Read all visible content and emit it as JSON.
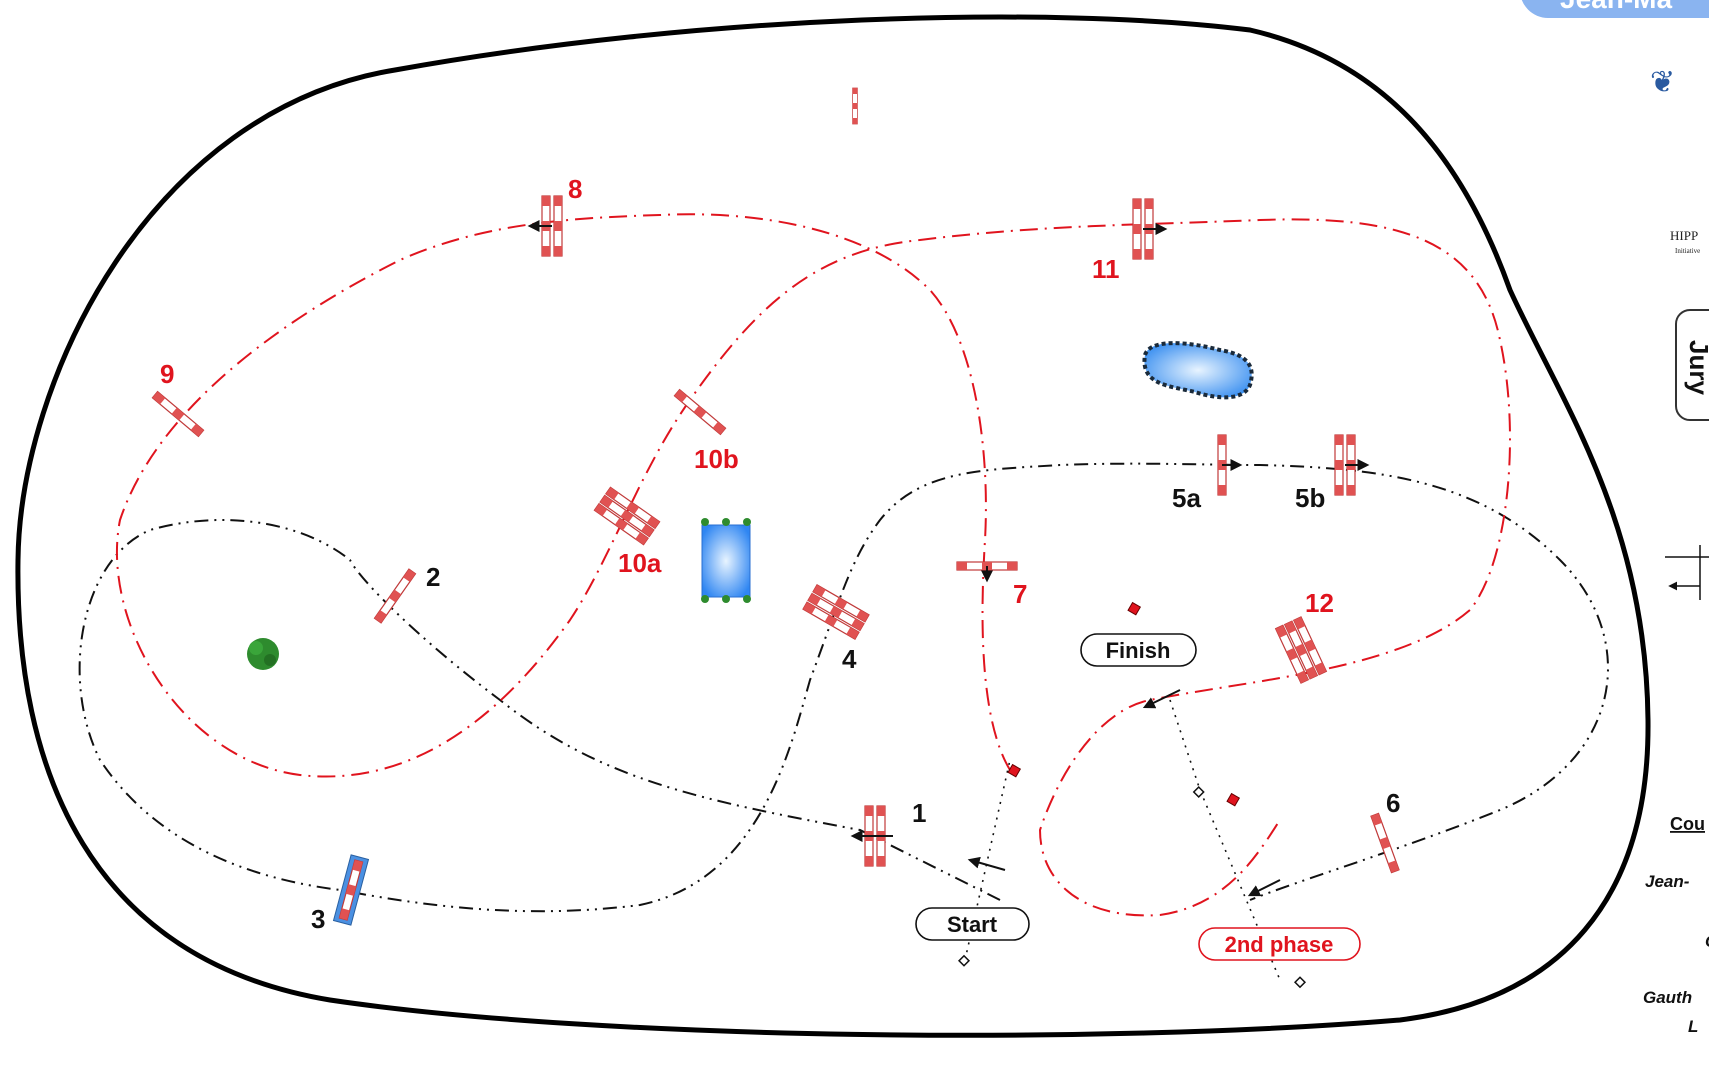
{
  "labels": {
    "start": "Start",
    "finish": "Finish",
    "second_phase": "2nd phase"
  },
  "fences": {
    "f1": "1",
    "f2": "2",
    "f3": "3",
    "f4": "4",
    "f5a": "5a",
    "f5b": "5b",
    "f6": "6",
    "f7": "7",
    "f8": "8",
    "f9": "9",
    "f10a": "10a",
    "f10b": "10b",
    "f11": "11",
    "f12": "12"
  },
  "sidebar": {
    "header_tab": "Jean-Ma",
    "sponsor": "HIPP",
    "sponsor_sub": "Initiative",
    "jury_tab": "Jury",
    "course_label": "Cou",
    "designer1": "Jean-",
    "designer2": "C",
    "designer3": "Gauth",
    "designer4": "L"
  },
  "colors": {
    "arena_outline": "#000000",
    "first_phase_track": "#111111",
    "second_phase_track": "#e0141e",
    "rail_red": "#e05252",
    "water": "#3b8ff0",
    "tree": "#2e8b2e",
    "tab": "#8ab4f0"
  }
}
